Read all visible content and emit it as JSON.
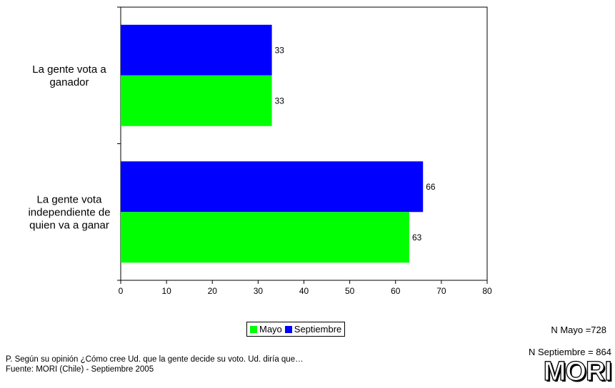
{
  "chart_data": {
    "type": "bar",
    "orientation": "horizontal",
    "categories": [
      "La gente vota a ganador",
      "La gente vota independiente de quien va a ganar"
    ],
    "category_lines": [
      [
        "La gente vota a",
        "ganador"
      ],
      [
        "La gente vota",
        "independiente de",
        "quien va a ganar"
      ]
    ],
    "series": [
      {
        "name": "Mayo",
        "color": "#00ff00",
        "values": [
          33,
          63
        ]
      },
      {
        "name": "Septiembre",
        "color": "#0000ff",
        "values": [
          33,
          66
        ]
      }
    ],
    "xlim": [
      0,
      80
    ],
    "xticks": [
      0,
      10,
      20,
      30,
      40,
      50,
      60,
      70,
      80
    ],
    "grid": false,
    "legend_position": "bottom"
  },
  "legend": {
    "mayo": "Mayo",
    "septiembre": "Septiembre"
  },
  "n_mayo": "N Mayo =728",
  "n_septiembre": "N Septiembre = 864",
  "logo": "MORI",
  "footnote": {
    "question": "P.  Según su opinión ¿Cómo cree Ud. que la gente decide su voto. Ud. diría que…",
    "source": "Fuente: MORI (Chile) - Septiembre 2005"
  }
}
